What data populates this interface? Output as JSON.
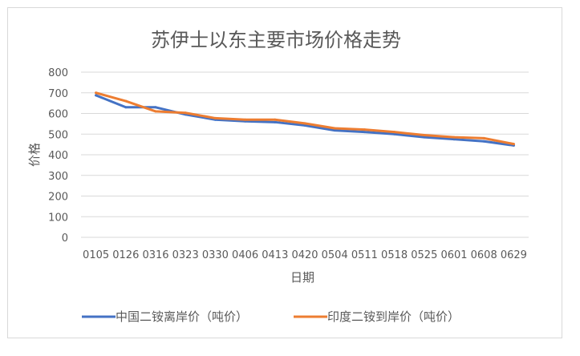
{
  "chart_data": {
    "type": "line",
    "title": "苏伊士以东主要市场价格走势",
    "xlabel": "日期",
    "ylabel": "价格",
    "ylim": [
      0,
      800
    ],
    "y_ticks": [
      "0",
      "100",
      "200",
      "300",
      "400",
      "500",
      "600",
      "700",
      "800"
    ],
    "grid": true,
    "legend_position": "bottom",
    "categories": [
      "0105",
      "0126",
      "0316",
      "0323",
      "0330",
      "0406",
      "0413",
      "0420",
      "0504",
      "0511",
      "0518",
      "0525",
      "0601",
      "0608",
      "0629"
    ],
    "series": [
      {
        "name": "中国二铵离岸价（吨价）",
        "color": "#4472C4",
        "values": [
          688,
          630,
          630,
          595,
          570,
          562,
          558,
          542,
          518,
          510,
          500,
          485,
          475,
          465,
          445
        ]
      },
      {
        "name": "印度二铵到岸价（吨价）",
        "color": "#ED7D31",
        "values": [
          700,
          660,
          610,
          603,
          577,
          570,
          570,
          552,
          528,
          522,
          510,
          495,
          485,
          480,
          452
        ]
      }
    ]
  }
}
